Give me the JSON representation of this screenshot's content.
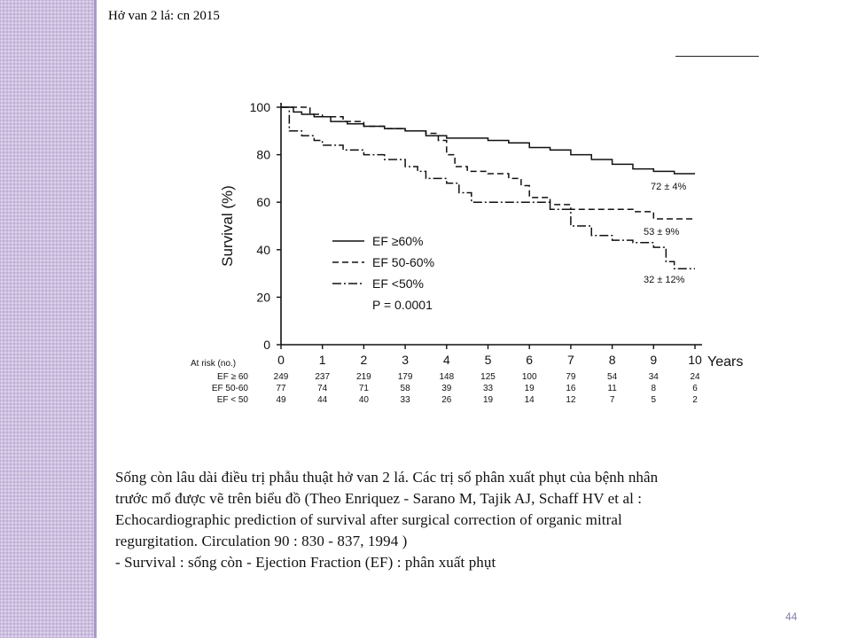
{
  "slide": {
    "header": "Hở van 2 lá: cn 2015",
    "caption_lines": [
      "Sống còn lâu dài điều trị phẫu thuật hở van 2 lá. Các trị số phân xuất phụt của bệnh nhân",
      "trước mổ được vẽ trên biểu đồ  (Theo Enriquez - Sarano M, Tajik AJ, Schaff HV et al :",
      "Echocardiographic prediction of survival after surgical correction of organic mitral",
      "regurgitation. Circulation 90 : 830 - 837, 1994 )",
      "-  Survival :  sống còn  -  Ejection Fraction (EF)  :  phân xuất phụt"
    ],
    "page_number": "44"
  },
  "chart_data": {
    "type": "line",
    "ylabel": "Survival (%)",
    "xlabel": "Years",
    "xlim": [
      0,
      10
    ],
    "ylim": [
      0,
      100
    ],
    "xticks": [
      "0",
      "1",
      "2",
      "3",
      "4",
      "5",
      "6",
      "7",
      "8",
      "9",
      "10"
    ],
    "yticks": [
      "0",
      "20",
      "40",
      "60",
      "80",
      "100"
    ],
    "series": [
      {
        "name": "EF ≥60%",
        "dash": "solid",
        "end_label": "72 ± 4%",
        "x": [
          0,
          0.3,
          0.5,
          0.8,
          1.2,
          1.6,
          2.0,
          2.5,
          3.0,
          3.5,
          4.0,
          4.5,
          5.0,
          5.5,
          6.0,
          6.5,
          7.0,
          7.5,
          8.0,
          8.5,
          9.0,
          9.5,
          10.0
        ],
        "y": [
          100,
          98,
          97,
          96,
          94,
          93,
          92,
          91,
          90,
          88,
          87,
          87,
          86,
          85,
          83,
          82,
          80,
          78,
          76,
          74,
          73,
          72,
          72
        ]
      },
      {
        "name": "EF 50-60%",
        "dash": "dashed",
        "end_label": "53 ± 9%",
        "x": [
          0,
          0.5,
          0.7,
          1.0,
          1.5,
          2.0,
          2.5,
          3.0,
          3.5,
          3.8,
          4.0,
          4.2,
          4.5,
          5.0,
          5.5,
          5.8,
          6.0,
          6.5,
          7.0,
          7.5,
          8.0,
          8.5,
          9.0,
          9.5,
          10.0
        ],
        "y": [
          100,
          100,
          97,
          96,
          94,
          92,
          91,
          90,
          89,
          86,
          80,
          75,
          73,
          72,
          70,
          67,
          62,
          59,
          57,
          57,
          57,
          56,
          53,
          53,
          53
        ]
      },
      {
        "name": "EF <50%",
        "dash": "dashdot",
        "end_label": "32 ± 12%",
        "x": [
          0,
          0.2,
          0.5,
          0.8,
          1.0,
          1.5,
          2.0,
          2.5,
          3.0,
          3.3,
          3.5,
          4.0,
          4.3,
          4.6,
          5.0,
          5.5,
          6.0,
          6.5,
          7.0,
          7.5,
          8.0,
          8.5,
          9.0,
          9.3,
          9.5,
          10.0
        ],
        "y": [
          100,
          90,
          88,
          86,
          84,
          82,
          80,
          78,
          75,
          73,
          70,
          68,
          64,
          60,
          60,
          60,
          60,
          57,
          50,
          46,
          44,
          43,
          41,
          35,
          32,
          32
        ]
      }
    ],
    "legend": {
      "position": "center",
      "extra_text": "P = 0.0001"
    },
    "at_risk": {
      "title": "At risk (no.)",
      "rows": [
        {
          "label": "EF  ≥ 60",
          "values": [
            "249",
            "237",
            "219",
            "179",
            "148",
            "125",
            "100",
            "79",
            "54",
            "34",
            "24"
          ]
        },
        {
          "label": "EF 50-60",
          "values": [
            "77",
            "74",
            "71",
            "58",
            "39",
            "33",
            "19",
            "16",
            "11",
            "8",
            "6"
          ]
        },
        {
          "label": "EF  < 50",
          "values": [
            "49",
            "44",
            "40",
            "33",
            "26",
            "19",
            "14",
            "12",
            "7",
            "5",
            "2"
          ]
        }
      ]
    }
  }
}
